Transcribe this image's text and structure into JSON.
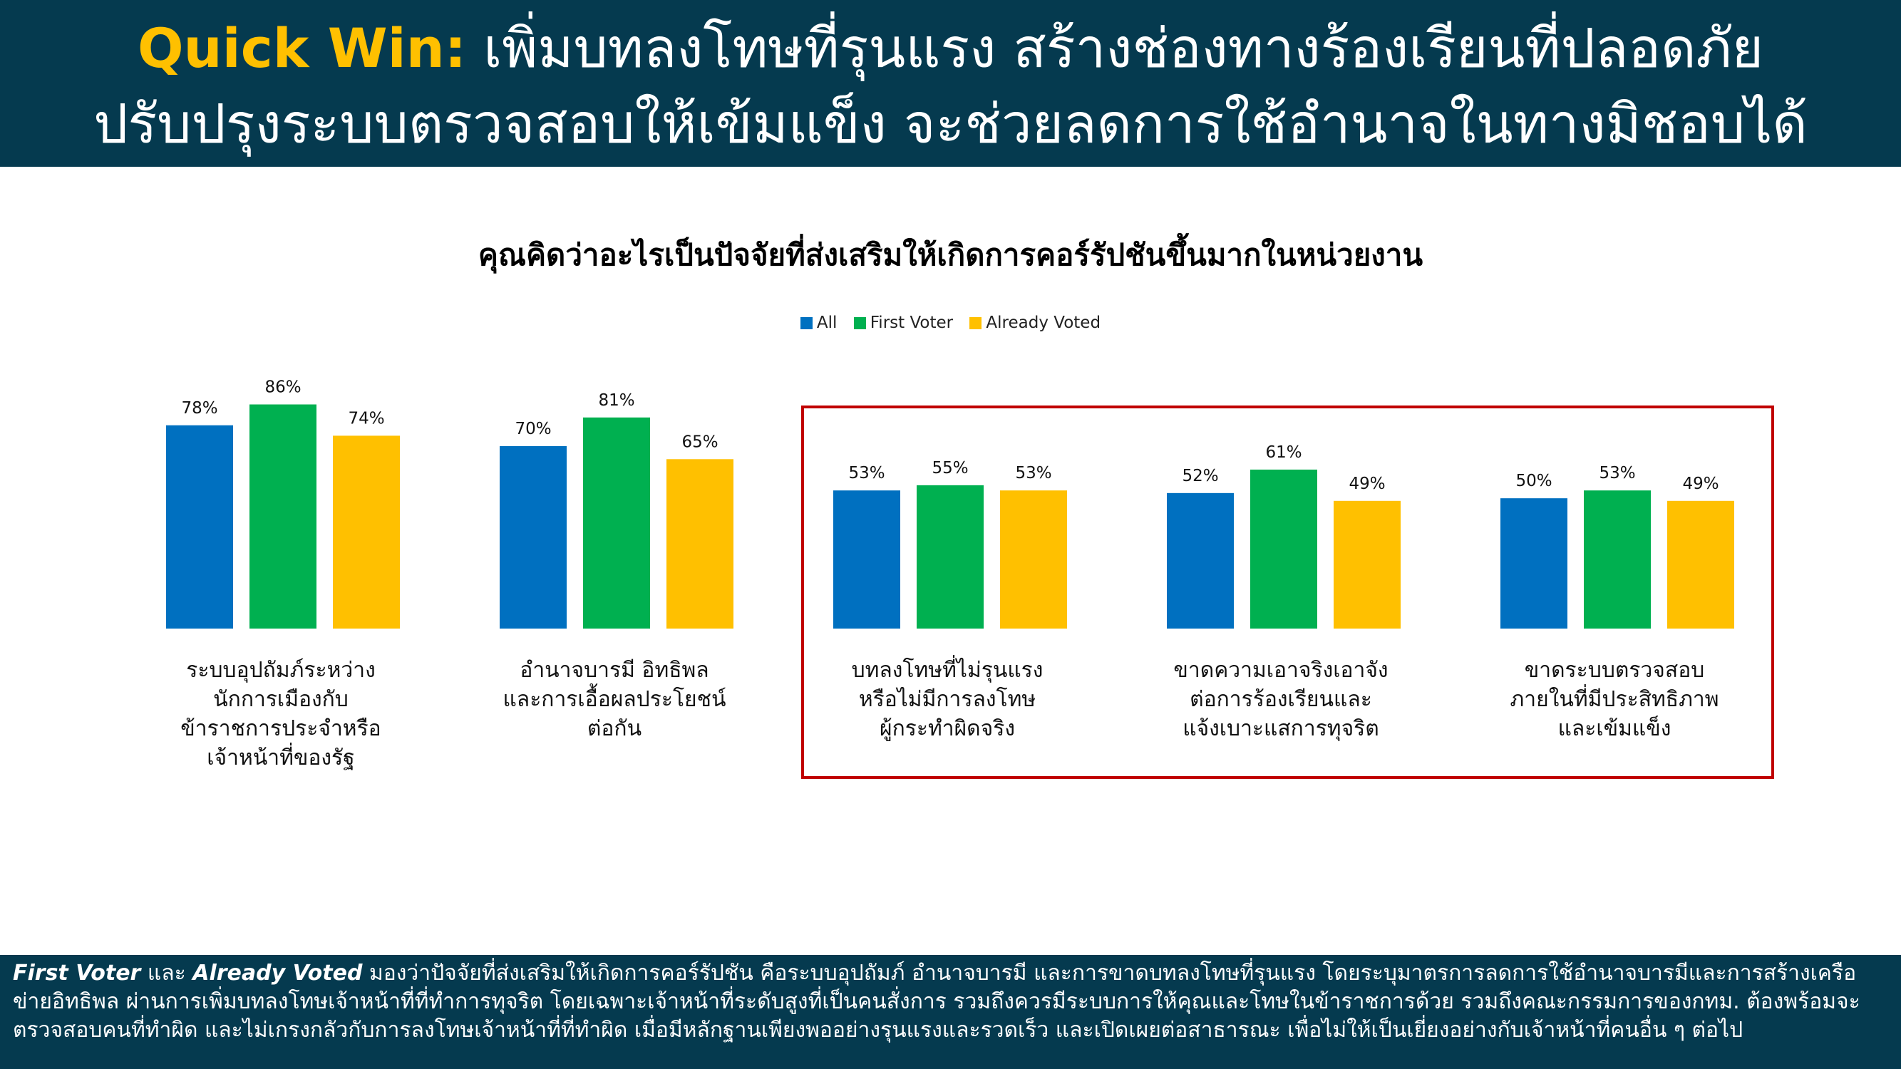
{
  "header": {
    "highlight": "Quick Win:",
    "line1_rest": " เพิ่มบทลงโทษที่รุนแรง สร้างช่องทางร้องเรียนที่ปลอดภัย",
    "line2": "ปรับปรุงระบบตรวจสอบให้เข้มแข็ง จะช่วยลดการใช้อำนาจในทางมิชอบได้"
  },
  "colors": {
    "header_bg": "#053a4f",
    "highlight_text": "#ffc000",
    "box_border": "#c00000"
  },
  "chart_data": {
    "type": "bar",
    "title": "คุณคิดว่าอะไรเป็นปัจจัยที่ส่งเสริมให้เกิดการคอร์รัปชันขึ้นมากในหน่วยงาน",
    "legend_position": "top-center",
    "grid": false,
    "ylim": [
      0,
      100
    ],
    "categories": [
      "ระบบอุปถัมภ์ระหว่าง\nนักการเมืองกับ\nข้าราชการประจำหรือ\nเจ้าหน้าที่ของรัฐ",
      "อำนาจบารมี อิทธิพล\nและการเอื้อผลประโยชน์\nต่อกัน",
      "บทลงโทษที่ไม่รุนแรง\nหรือไม่มีการลงโทษ\nผู้กระทำผิดจริง",
      "ขาดความเอาจริงเอาจัง\nต่อการร้องเรียนและ\nแจ้งเบาะแสการทุจริต",
      "ขาดระบบตรวจสอบ\nภายในที่มีประสิทธิภาพ\nและเข้มแข็ง"
    ],
    "series": [
      {
        "name": "All",
        "color": "#0070c0",
        "values": [
          78,
          70,
          53,
          52,
          50
        ],
        "labels": [
          "78%",
          "70%",
          "53%",
          "52%",
          "50%"
        ]
      },
      {
        "name": "First Voter",
        "color": "#00b050",
        "values": [
          86,
          81,
          55,
          61,
          53
        ],
        "labels": [
          "86%",
          "81%",
          "55%",
          "61%",
          "53%"
        ]
      },
      {
        "name": "Already Voted",
        "color": "#ffc000",
        "values": [
          74,
          65,
          53,
          49,
          49
        ],
        "labels": [
          "74%",
          "65%",
          "53%",
          "49%",
          "49%"
        ]
      }
    ],
    "highlighted_categories": [
      2,
      3,
      4
    ]
  },
  "footer": {
    "em1": "First Voter",
    "t1": " และ ",
    "em2": "Already Voted",
    "t2": " มองว่าปัจจัยที่ส่งเสริมให้เกิดการคอร์รัปชัน คือระบบอุปถัมภ์ อำนาจบารมี และการขาดบทลงโทษที่รุนแรง โดยระบุมาตรการลดการใช้อำนาจบารมีและการสร้างเครือข่ายอิทธิพล ผ่านการเพิ่มบทลงโทษเจ้าหน้าที่ที่ทำการทุจริต โดยเฉพาะเจ้าหน้าที่ระดับสูงที่เป็นคนสั่งการ รวมถึงควรมีระบบการให้คุณและโทษในข้าราชการด้วย รวมถึงคณะกรรมการของกทม. ต้องพร้อมจะตรวจสอบคนที่ทำผิด และไม่เกรงกลัวกับการลงโทษเจ้าหน้าที่ที่ทำผิด เมื่อมีหลักฐานเพียงพออย่างรุนแรงและรวดเร็ว และเปิดเผยต่อสาธารณะ เพื่อไม่ให้เป็นเยี่ยงอย่างกับเจ้าหน้าที่คนอื่น ๆ ต่อไป"
  }
}
